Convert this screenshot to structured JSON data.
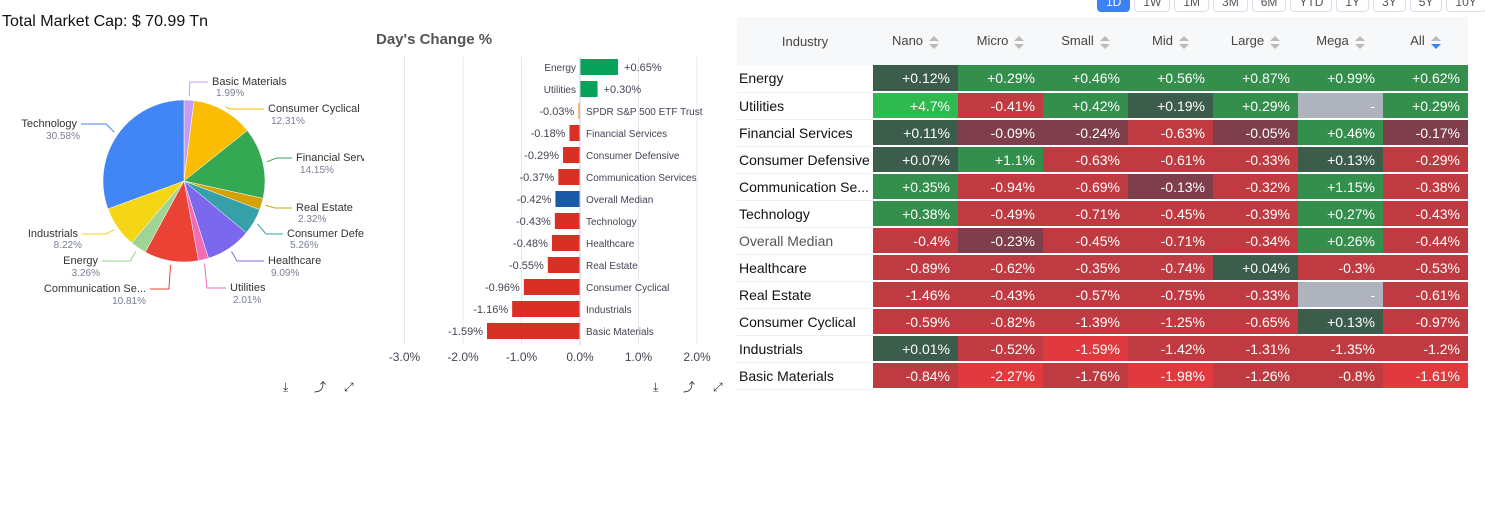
{
  "total_market_cap": "Total Market Cap: $ 70.99 Tn",
  "timeframes": [
    {
      "label": "1D",
      "active": true
    },
    {
      "label": "1W"
    },
    {
      "label": "1M"
    },
    {
      "label": "3M"
    },
    {
      "label": "6M"
    },
    {
      "label": "YTD"
    },
    {
      "label": "1Y"
    },
    {
      "label": "3Y"
    },
    {
      "label": "5Y"
    },
    {
      "label": "10Y"
    }
  ],
  "pie": {
    "slices": [
      {
        "label": "Basic Materials",
        "pct": "1.99%",
        "value": 1.99,
        "color": "#c49cf5"
      },
      {
        "label": "Consumer Cyclical",
        "pct": "12.31%",
        "value": 12.31,
        "color": "#fbbc04"
      },
      {
        "label": "Financial Services",
        "pct": "14.15%",
        "value": 14.15,
        "color": "#34a853"
      },
      {
        "label": "Real Estate",
        "pct": "2.32%",
        "value": 2.32,
        "color": "#d4a106"
      },
      {
        "label": "Consumer Defensive",
        "pct": "5.26%",
        "value": 5.26,
        "color": "#35a0a8"
      },
      {
        "label": "Healthcare",
        "pct": "9.09%",
        "value": 9.09,
        "color": "#7b68ee"
      },
      {
        "label": "Utilities",
        "pct": "2.01%",
        "value": 2.01,
        "color": "#f06cb5"
      },
      {
        "label": "Communication Se...",
        "pct": "10.81%",
        "value": 10.81,
        "color": "#ea4335"
      },
      {
        "label": "Energy",
        "pct": "3.26%",
        "value": 3.26,
        "color": "#9fd494"
      },
      {
        "label": "Industrials",
        "pct": "8.22%",
        "value": 8.22,
        "color": "#f5d614"
      },
      {
        "label": "Technology",
        "pct": "30.58%",
        "value": 30.58,
        "color": "#4285f4"
      }
    ]
  },
  "toolbar_icons": [
    "download-icon",
    "share-icon",
    "expand-icon"
  ],
  "chart_data": {
    "type": "bar",
    "orientation": "horizontal",
    "title": "Day's Change %",
    "categories": [
      "Energy",
      "Utilities",
      "SPDR S&P 500 ETF Trust",
      "Financial Services",
      "Consumer Defensive",
      "Communication Services",
      "Overall Median",
      "Technology",
      "Healthcare",
      "Real Estate",
      "Consumer Cyclical",
      "Industrials",
      "Basic Materials"
    ],
    "values": [
      0.65,
      0.3,
      -0.03,
      -0.18,
      -0.29,
      -0.37,
      -0.42,
      -0.43,
      -0.48,
      -0.55,
      -0.96,
      -1.16,
      -1.59
    ],
    "labels": [
      "+0.65%",
      "+0.30%",
      "-0.03%",
      "-0.18%",
      "-0.29%",
      "-0.37%",
      "-0.42%",
      "-0.43%",
      "-0.48%",
      "-0.55%",
      "-0.96%",
      "-1.16%",
      "-1.59%"
    ],
    "colors": [
      "#07a35a",
      "#07a35a",
      "#f4a460",
      "#d93026",
      "#d93026",
      "#d93026",
      "#1a5aa8",
      "#d93026",
      "#d93026",
      "#d93026",
      "#d93026",
      "#d93026",
      "#d93026"
    ],
    "xlim": [
      -3,
      2
    ],
    "xticks": [
      "-3.0%",
      "-2.0%",
      "-1.0%",
      "0.0%",
      "1.0%",
      "2.0%"
    ],
    "grid": true
  },
  "table": {
    "headers": [
      "Industry",
      "Nano",
      "Micro",
      "Small",
      "Mid",
      "Large",
      "Mega",
      "All"
    ],
    "palette": {
      "dg": "#3c5d4b",
      "g": "#348f4c",
      "bg": "#2fba50",
      "m": "#7e3e4c",
      "r": "#c03b41",
      "br": "#e03a3e",
      "na": "#aeb3bd"
    },
    "rows": [
      {
        "name": "Energy",
        "cells": [
          "+0.12%",
          "+0.29%",
          "+0.46%",
          "+0.56%",
          "+0.87%",
          "+0.99%",
          "+0.62%"
        ],
        "tones": [
          "dg",
          "g",
          "g",
          "g",
          "g",
          "g",
          "g"
        ]
      },
      {
        "name": "Utilities",
        "cells": [
          "+4.7%",
          "-0.41%",
          "+0.42%",
          "+0.19%",
          "+0.29%",
          "-",
          "+0.29%"
        ],
        "tones": [
          "bg",
          "r",
          "g",
          "dg",
          "g",
          "na",
          "g"
        ]
      },
      {
        "name": "Financial Services",
        "cells": [
          "+0.11%",
          "-0.09%",
          "-0.24%",
          "-0.63%",
          "-0.05%",
          "+0.46%",
          "-0.17%"
        ],
        "tones": [
          "dg",
          "m",
          "m",
          "r",
          "m",
          "g",
          "m"
        ]
      },
      {
        "name": "Consumer Defensive",
        "cells": [
          "+0.07%",
          "+1.1%",
          "-0.63%",
          "-0.61%",
          "-0.33%",
          "+0.13%",
          "-0.29%"
        ],
        "tones": [
          "dg",
          "g",
          "r",
          "r",
          "r",
          "dg",
          "r"
        ]
      },
      {
        "name": "Communication Se...",
        "cells": [
          "+0.35%",
          "-0.94%",
          "-0.69%",
          "-0.13%",
          "-0.32%",
          "+1.15%",
          "-0.38%"
        ],
        "tones": [
          "g",
          "r",
          "r",
          "m",
          "r",
          "g",
          "r"
        ]
      },
      {
        "name": "Technology",
        "cells": [
          "+0.38%",
          "-0.49%",
          "-0.71%",
          "-0.45%",
          "-0.39%",
          "+0.27%",
          "-0.43%"
        ],
        "tones": [
          "g",
          "r",
          "r",
          "r",
          "r",
          "g",
          "r"
        ]
      },
      {
        "name": "Overall Median",
        "cells": [
          "-0.4%",
          "-0.23%",
          "-0.45%",
          "-0.71%",
          "-0.34%",
          "+0.26%",
          "-0.44%"
        ],
        "tones": [
          "r",
          "m",
          "r",
          "r",
          "r",
          "g",
          "r"
        ],
        "muted": true
      },
      {
        "name": "Healthcare",
        "cells": [
          "-0.89%",
          "-0.62%",
          "-0.35%",
          "-0.74%",
          "+0.04%",
          "-0.3%",
          "-0.53%"
        ],
        "tones": [
          "r",
          "r",
          "r",
          "r",
          "dg",
          "r",
          "r"
        ]
      },
      {
        "name": "Real Estate",
        "cells": [
          "-1.46%",
          "-0.43%",
          "-0.57%",
          "-0.75%",
          "-0.33%",
          "-",
          "-0.61%"
        ],
        "tones": [
          "r",
          "r",
          "r",
          "r",
          "r",
          "na",
          "r"
        ]
      },
      {
        "name": "Consumer Cyclical",
        "cells": [
          "-0.59%",
          "-0.82%",
          "-1.39%",
          "-1.25%",
          "-0.65%",
          "+0.13%",
          "-0.97%"
        ],
        "tones": [
          "r",
          "r",
          "r",
          "r",
          "r",
          "dg",
          "r"
        ]
      },
      {
        "name": "Industrials",
        "cells": [
          "+0.01%",
          "-0.52%",
          "-1.59%",
          "-1.42%",
          "-1.31%",
          "-1.35%",
          "-1.2%"
        ],
        "tones": [
          "dg",
          "r",
          "br",
          "r",
          "r",
          "r",
          "r"
        ]
      },
      {
        "name": "Basic Materials",
        "cells": [
          "-0.84%",
          "-2.27%",
          "-1.76%",
          "-1.98%",
          "-1.26%",
          "-0.8%",
          "-1.61%"
        ],
        "tones": [
          "r",
          "br",
          "r",
          "br",
          "r",
          "r",
          "br"
        ]
      }
    ]
  }
}
